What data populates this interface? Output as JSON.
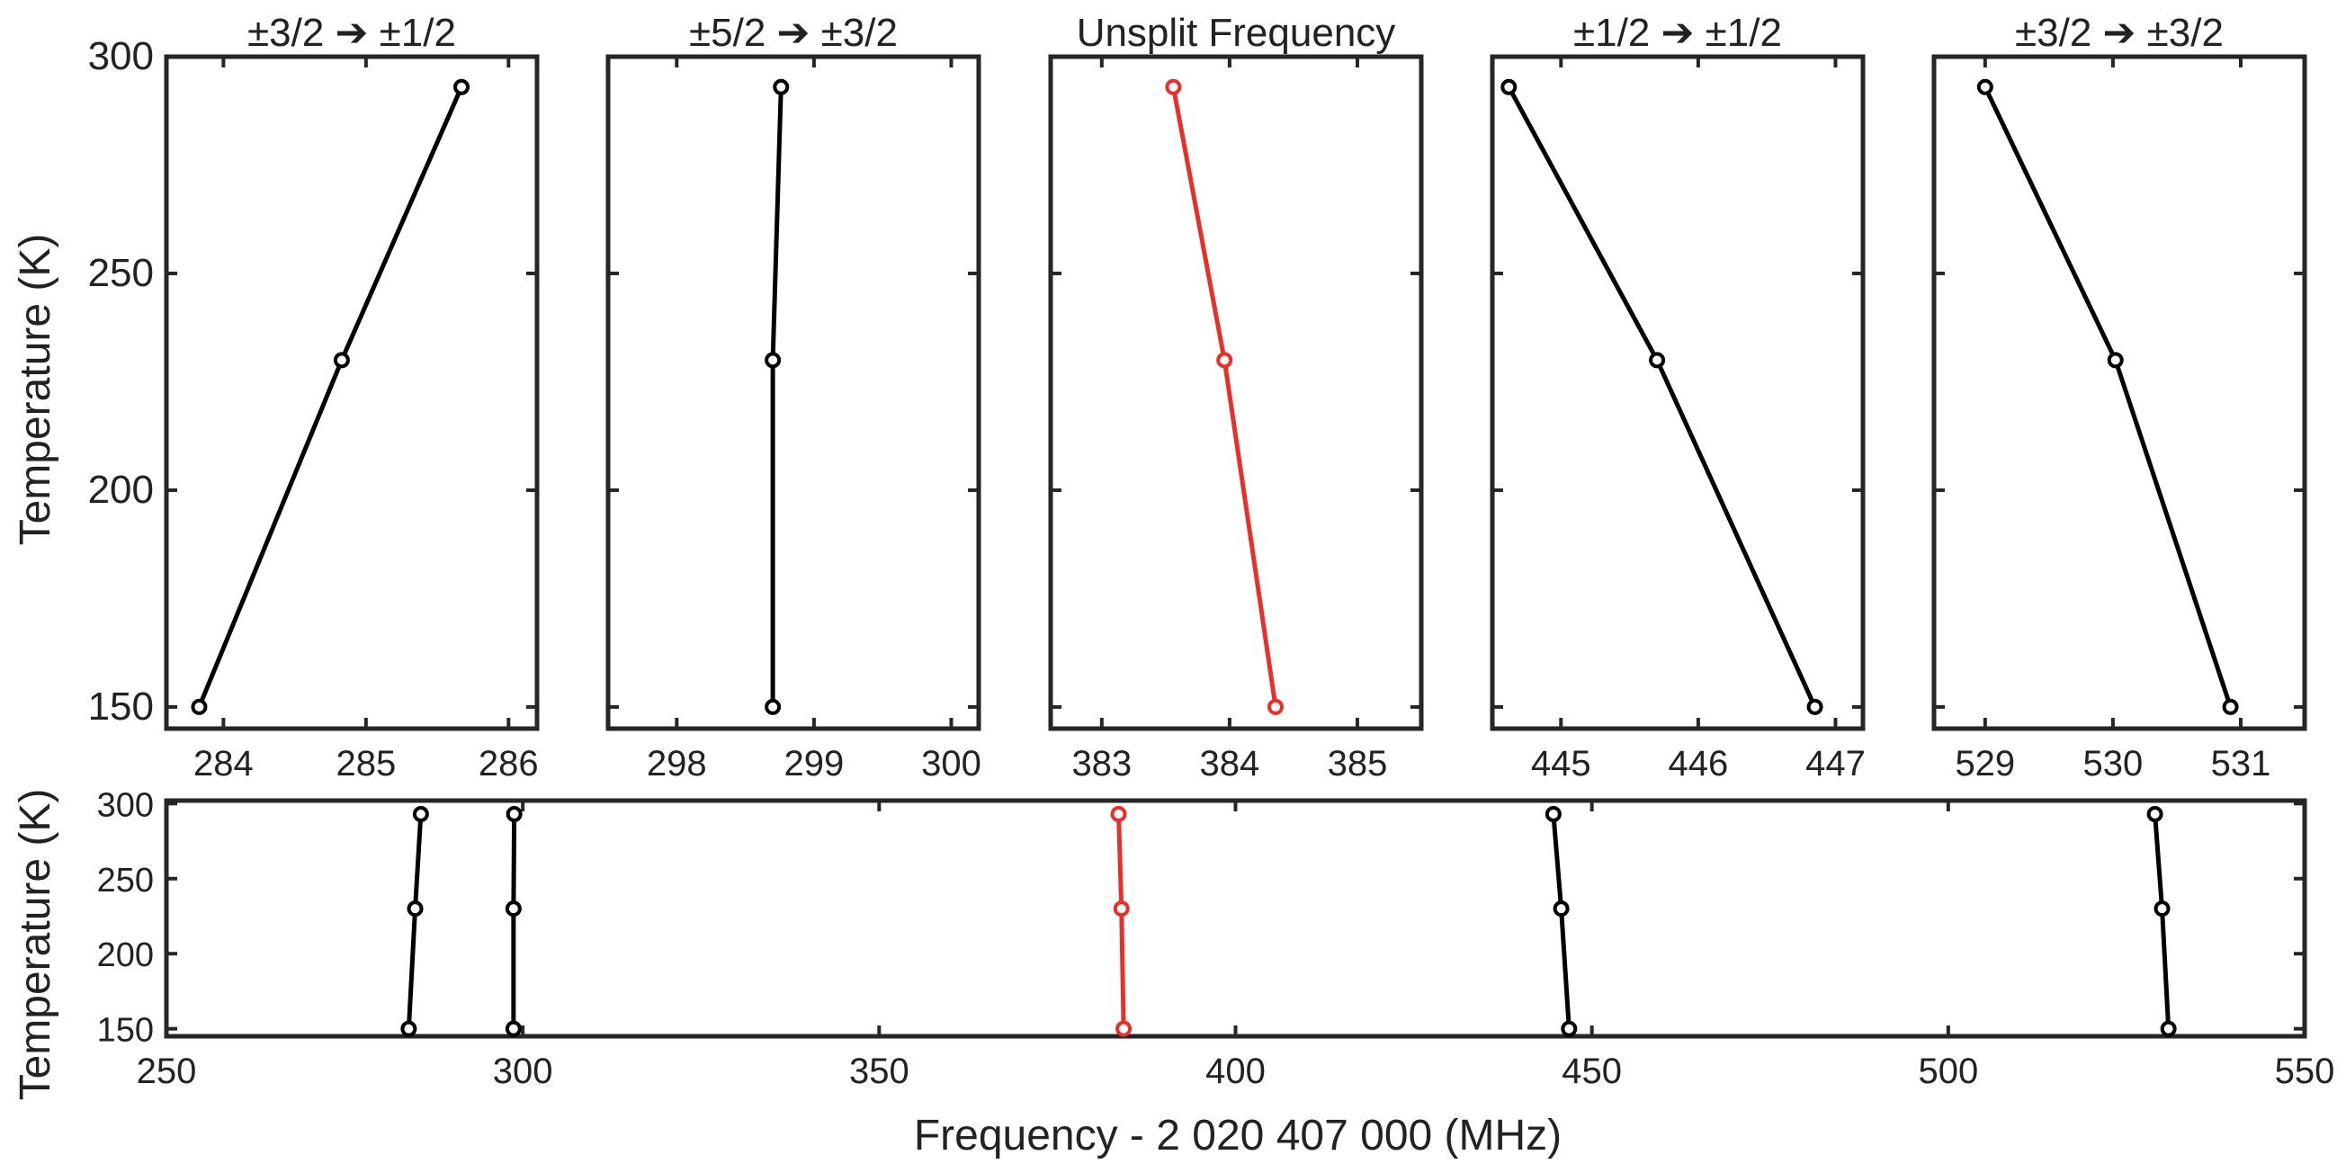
{
  "ylabel": "Temperature (K)",
  "xlabel": "Frequency - 2 020 407 000 (MHz)",
  "colors": {
    "axis": "#262626",
    "default": "#000000",
    "highlight": "#e8302a"
  },
  "chart_data": [
    {
      "id": "panel-1",
      "type": "line",
      "title": "±3/2 ➔ ±1/2",
      "color": "#000000",
      "xlim": [
        283.6,
        286.2
      ],
      "ylim": [
        145,
        300
      ],
      "xticks": [
        284,
        285,
        286
      ],
      "yticks": [
        150,
        200,
        250,
        300
      ],
      "show_ytick_labels": true,
      "series": [
        {
          "x": [
            283.83,
            284.83,
            285.67
          ],
          "y": [
            150,
            230,
            293
          ]
        }
      ]
    },
    {
      "id": "panel-2",
      "type": "line",
      "title": "±5/2 ➔ ±3/2",
      "color": "#000000",
      "xlim": [
        297.5,
        300.2
      ],
      "ylim": [
        145,
        300
      ],
      "xticks": [
        298,
        299,
        300
      ],
      "yticks": [
        150,
        200,
        250,
        300
      ],
      "show_ytick_labels": false,
      "series": [
        {
          "x": [
            298.7,
            298.7,
            298.76
          ],
          "y": [
            150,
            230,
            293
          ]
        }
      ]
    },
    {
      "id": "panel-3",
      "type": "line",
      "title": "Unsplit Frequency",
      "color": "#e8302a",
      "xlim": [
        382.6,
        385.5
      ],
      "ylim": [
        145,
        300
      ],
      "xticks": [
        383,
        384,
        385
      ],
      "yticks": [
        150,
        200,
        250,
        300
      ],
      "show_ytick_labels": false,
      "series": [
        {
          "x": [
            384.36,
            383.96,
            383.56
          ],
          "y": [
            150,
            230,
            293
          ]
        }
      ]
    },
    {
      "id": "panel-4",
      "type": "line",
      "title": "±1/2 ➔ ±1/2",
      "color": "#000000",
      "xlim": [
        444.5,
        447.2
      ],
      "ylim": [
        145,
        300
      ],
      "xticks": [
        445,
        446,
        447
      ],
      "yticks": [
        150,
        200,
        250,
        300
      ],
      "show_ytick_labels": false,
      "series": [
        {
          "x": [
            446.85,
            445.7,
            444.62
          ],
          "y": [
            150,
            230,
            293
          ]
        }
      ]
    },
    {
      "id": "panel-5",
      "type": "line",
      "title": "±3/2 ➔ ±3/2",
      "color": "#000000",
      "xlim": [
        528.6,
        531.5
      ],
      "ylim": [
        145,
        300
      ],
      "xticks": [
        529,
        530,
        531
      ],
      "yticks": [
        150,
        200,
        250,
        300
      ],
      "show_ytick_labels": false,
      "series": [
        {
          "x": [
            530.92,
            530.02,
            529.0
          ],
          "y": [
            150,
            230,
            293
          ]
        }
      ]
    },
    {
      "id": "overview",
      "type": "line",
      "title": "",
      "color": "#000000",
      "xlim": [
        250,
        550
      ],
      "ylim": [
        145,
        302
      ],
      "xticks": [
        250,
        300,
        350,
        400,
        450,
        500,
        550
      ],
      "yticks": [
        150,
        200,
        250,
        300
      ],
      "show_ytick_labels": true,
      "series": [
        {
          "x": [
            284.0,
            284.9,
            285.7
          ],
          "y": [
            150,
            230,
            293
          ],
          "color": "#000000"
        },
        {
          "x": [
            298.7,
            298.7,
            298.8
          ],
          "y": [
            150,
            230,
            293
          ],
          "color": "#000000"
        },
        {
          "x": [
            384.3,
            384.0,
            383.6
          ],
          "y": [
            150,
            230,
            293
          ],
          "color": "#e8302a"
        },
        {
          "x": [
            446.8,
            445.7,
            444.6
          ],
          "y": [
            150,
            230,
            293
          ],
          "color": "#000000"
        },
        {
          "x": [
            530.9,
            530.0,
            529.0
          ],
          "y": [
            150,
            230,
            293
          ],
          "color": "#000000"
        }
      ]
    }
  ]
}
